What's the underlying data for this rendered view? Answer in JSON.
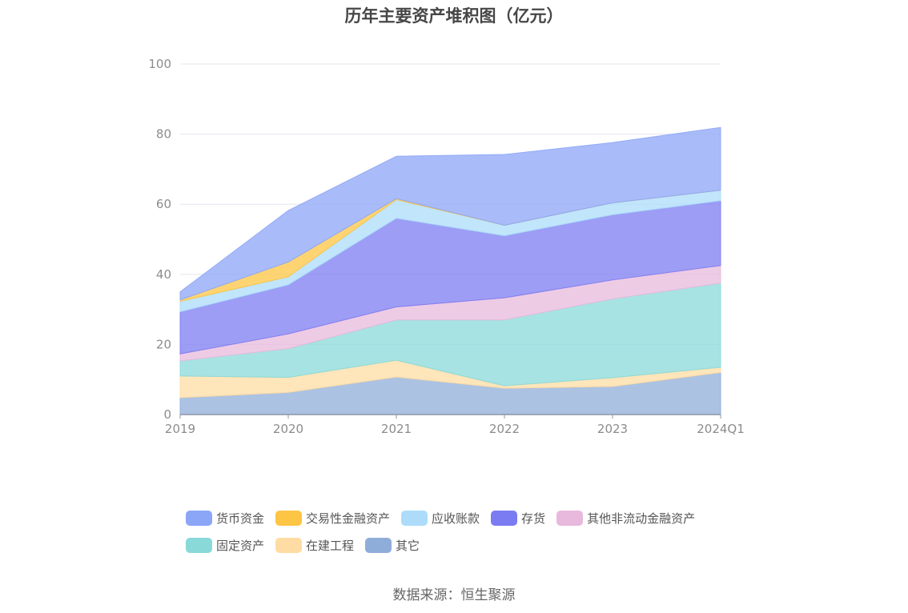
{
  "title": "历年主要资产堆积图（亿元）",
  "source": "数据来源：恒生聚源",
  "chart_data": {
    "type": "area",
    "stacked": true,
    "title": "历年主要资产堆积图（亿元）",
    "xlabel": "",
    "ylabel": "",
    "categories": [
      "2019",
      "2020",
      "2021",
      "2022",
      "2023",
      "2024Q1"
    ],
    "ylim": [
      0,
      100
    ],
    "yticks": [
      0,
      20,
      40,
      60,
      80,
      100
    ],
    "grid": true,
    "legend_position": "bottom",
    "series": [
      {
        "name": "其它",
        "color": "#8fadd9",
        "values": [
          4.8,
          6.3,
          10.7,
          7.5,
          8.0,
          12.0
        ]
      },
      {
        "name": "在建工程",
        "color": "#ffdca3",
        "values": [
          6.2,
          4.3,
          4.8,
          0.7,
          2.5,
          1.5
        ]
      },
      {
        "name": "固定资产",
        "color": "#8ad9d9",
        "values": [
          4.3,
          8.2,
          11.5,
          18.8,
          22.5,
          24.0
        ]
      },
      {
        "name": "其他非流动金融资产",
        "color": "#e8b9dc",
        "values": [
          2.0,
          4.2,
          3.7,
          6.3,
          5.4,
          5.0
        ]
      },
      {
        "name": "存货",
        "color": "#7c7cf2",
        "values": [
          12.0,
          14.0,
          25.3,
          17.7,
          18.6,
          18.5
        ]
      },
      {
        "name": "应收账款",
        "color": "#acdcfa",
        "values": [
          3.0,
          2.3,
          5.3,
          3.0,
          3.4,
          3.0
        ]
      },
      {
        "name": "交易性金融资产",
        "color": "#fdc544",
        "values": [
          0.4,
          4.2,
          0.3,
          0.0,
          0.0,
          0.0
        ]
      },
      {
        "name": "货币资金",
        "color": "#8ca6f7",
        "values": [
          2.3,
          14.7,
          12.1,
          20.2,
          17.2,
          17.9
        ]
      }
    ],
    "legend_order": [
      "货币资金",
      "交易性金融资产",
      "应收账款",
      "存货",
      "其他非流动金融资产",
      "固定资产",
      "在建工程",
      "其它"
    ]
  }
}
